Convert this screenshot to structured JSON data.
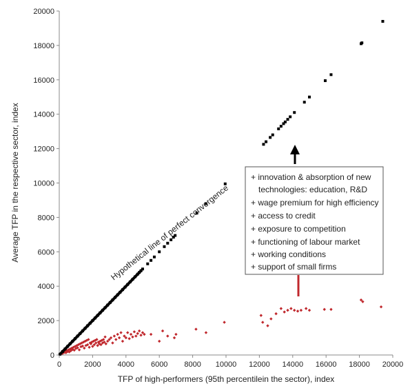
{
  "chart_data": {
    "type": "scatter",
    "title": "",
    "xlabel": "TFP of high-performers (95th percentilein the sector), index",
    "ylabel": "Average TFP in the respective sector, index",
    "xlim": [
      0,
      20000
    ],
    "ylim": [
      0,
      20000
    ],
    "xticks": [
      0,
      2000,
      4000,
      6000,
      8000,
      10000,
      12000,
      14000,
      16000,
      18000,
      20000
    ],
    "yticks": [
      0,
      2000,
      4000,
      6000,
      8000,
      10000,
      12000,
      14000,
      16000,
      18000,
      20000
    ],
    "grid": false,
    "reference_line": {
      "label": "Hypothetical line of perfect convergence",
      "color": "#000000",
      "points": [
        [
          50,
          50
        ],
        [
          200,
          200
        ],
        [
          350,
          350
        ],
        [
          500,
          500
        ],
        [
          650,
          650
        ],
        [
          800,
          800
        ],
        [
          950,
          950
        ],
        [
          1100,
          1100
        ],
        [
          1250,
          1250
        ],
        [
          1400,
          1400
        ],
        [
          1550,
          1550
        ],
        [
          1700,
          1700
        ],
        [
          1850,
          1850
        ],
        [
          2000,
          2000
        ],
        [
          2150,
          2150
        ],
        [
          2300,
          2300
        ],
        [
          2450,
          2450
        ],
        [
          2600,
          2600
        ],
        [
          2750,
          2750
        ],
        [
          2900,
          2900
        ],
        [
          3050,
          3050
        ],
        [
          3200,
          3200
        ],
        [
          3350,
          3350
        ],
        [
          3500,
          3500
        ],
        [
          3650,
          3650
        ],
        [
          3800,
          3800
        ],
        [
          3950,
          3950
        ],
        [
          4100,
          4100
        ],
        [
          4250,
          4250
        ],
        [
          4400,
          4400
        ],
        [
          4550,
          4550
        ],
        [
          4700,
          4700
        ],
        [
          4800,
          4800
        ],
        [
          4900,
          4900
        ],
        [
          5000,
          5000
        ],
        [
          5300,
          5300
        ],
        [
          5500,
          5500
        ],
        [
          5700,
          5700
        ],
        [
          6000,
          6000
        ],
        [
          6300,
          6300
        ],
        [
          6500,
          6500
        ],
        [
          6700,
          6700
        ],
        [
          6850,
          6850
        ],
        [
          6950,
          6950
        ],
        [
          8250,
          8250
        ],
        [
          8800,
          8800
        ],
        [
          9950,
          9950
        ],
        [
          12250,
          12250
        ],
        [
          12400,
          12400
        ],
        [
          12650,
          12650
        ],
        [
          12800,
          12800
        ],
        [
          13150,
          13150
        ],
        [
          13300,
          13300
        ],
        [
          13450,
          13450
        ],
        [
          13550,
          13550
        ],
        [
          13700,
          13700
        ],
        [
          13850,
          13850
        ],
        [
          14100,
          14100
        ],
        [
          14700,
          14700
        ],
        [
          15000,
          15000
        ],
        [
          15950,
          15950
        ],
        [
          16300,
          16300
        ],
        [
          18100,
          18100
        ],
        [
          18150,
          18150
        ],
        [
          19400,
          19400
        ]
      ]
    },
    "series": [
      {
        "color": "#c0282d",
        "points": [
          [
            100,
            60
          ],
          [
            150,
            120
          ],
          [
            200,
            90
          ],
          [
            250,
            180
          ],
          [
            300,
            150
          ],
          [
            350,
            220
          ],
          [
            400,
            130
          ],
          [
            450,
            260
          ],
          [
            500,
            200
          ],
          [
            550,
            300
          ],
          [
            600,
            180
          ],
          [
            650,
            350
          ],
          [
            700,
            250
          ],
          [
            750,
            400
          ],
          [
            800,
            320
          ],
          [
            850,
            450
          ],
          [
            900,
            280
          ],
          [
            950,
            500
          ],
          [
            1000,
            380
          ],
          [
            1050,
            550
          ],
          [
            1100,
            420
          ],
          [
            1150,
            600
          ],
          [
            1200,
            300
          ],
          [
            1250,
            650
          ],
          [
            1300,
            480
          ],
          [
            1350,
            700
          ],
          [
            1400,
            520
          ],
          [
            1450,
            750
          ],
          [
            1500,
            400
          ],
          [
            1550,
            800
          ],
          [
            1600,
            550
          ],
          [
            1650,
            850
          ],
          [
            1700,
            600
          ],
          [
            1750,
            900
          ],
          [
            1800,
            450
          ],
          [
            1850,
            700
          ],
          [
            1900,
            650
          ],
          [
            1950,
            750
          ],
          [
            2000,
            500
          ],
          [
            2050,
            800
          ],
          [
            2100,
            600
          ],
          [
            2150,
            850
          ],
          [
            2200,
            700
          ],
          [
            2250,
            900
          ],
          [
            2300,
            550
          ],
          [
            2350,
            750
          ],
          [
            2400,
            650
          ],
          [
            2450,
            800
          ],
          [
            2500,
            600
          ],
          [
            2550,
            850
          ],
          [
            2600,
            700
          ],
          [
            2650,
            900
          ],
          [
            2700,
            750
          ],
          [
            2750,
            1050
          ],
          [
            2800,
            650
          ],
          [
            2900,
            800
          ],
          [
            3000,
            900
          ],
          [
            3100,
            1000
          ],
          [
            3200,
            700
          ],
          [
            3300,
            1100
          ],
          [
            3400,
            900
          ],
          [
            3500,
            1200
          ],
          [
            3600,
            1000
          ],
          [
            3700,
            1300
          ],
          [
            3800,
            800
          ],
          [
            3900,
            1100
          ],
          [
            4000,
            1000
          ],
          [
            4100,
            1300
          ],
          [
            4200,
            950
          ],
          [
            4300,
            1200
          ],
          [
            4400,
            1050
          ],
          [
            4500,
            1350
          ],
          [
            4600,
            1100
          ],
          [
            4700,
            1250
          ],
          [
            4800,
            1400
          ],
          [
            4900,
            1150
          ],
          [
            5000,
            1300
          ],
          [
            5100,
            1200
          ],
          [
            5500,
            1200
          ],
          [
            6000,
            800
          ],
          [
            6200,
            1400
          ],
          [
            6500,
            1100
          ],
          [
            6900,
            1000
          ],
          [
            7000,
            1200
          ],
          [
            8200,
            1500
          ],
          [
            8800,
            1300
          ],
          [
            9900,
            1900
          ],
          [
            12100,
            2300
          ],
          [
            12200,
            1900
          ],
          [
            12500,
            1700
          ],
          [
            12700,
            2100
          ],
          [
            13000,
            2400
          ],
          [
            13300,
            2700
          ],
          [
            13500,
            2500
          ],
          [
            13700,
            2600
          ],
          [
            13900,
            2700
          ],
          [
            14100,
            2600
          ],
          [
            14300,
            2550
          ],
          [
            14500,
            2600
          ],
          [
            14800,
            2700
          ],
          [
            15000,
            2600
          ],
          [
            15900,
            2650
          ],
          [
            16300,
            2650
          ],
          [
            18100,
            3200
          ],
          [
            18200,
            3100
          ],
          [
            19300,
            2800
          ]
        ]
      }
    ],
    "annotation_box": {
      "lines": [
        "+ innovation & absorption of new",
        "technologies: education, R&D",
        "+ wage premium for high efficiency",
        "+ access to credit",
        "+ exposure to competition",
        "+ functioning of labour market",
        "+ working conditions",
        "+ support of small firms"
      ]
    },
    "arrows": [
      {
        "direction": "up",
        "color": "#000000"
      },
      {
        "direction": "down",
        "color": "#c0282d"
      }
    ]
  }
}
